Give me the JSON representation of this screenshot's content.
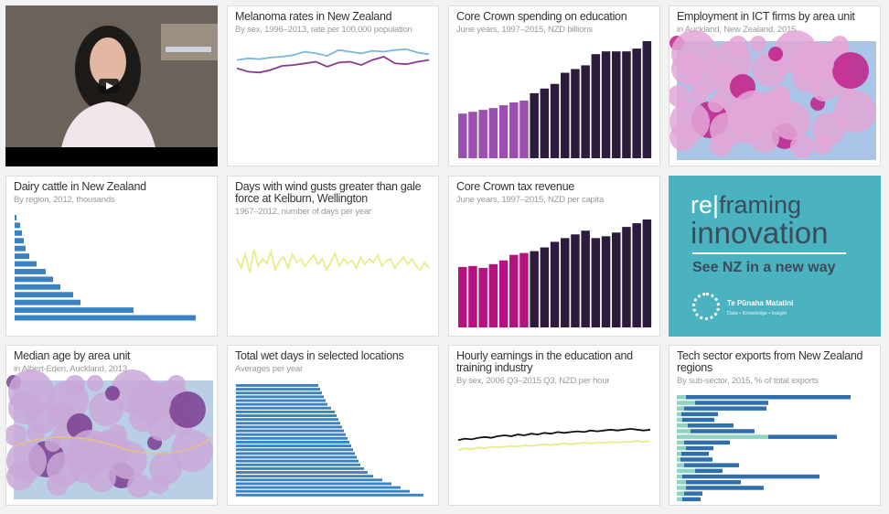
{
  "colors": {
    "promo": "#4bb3bf",
    "edu_early": "#9b4fb0",
    "edu_late": "#2d1b3d",
    "tax_early": "#b5127f",
    "blue": "#3b82c4",
    "teal": "#8fd3c1",
    "yellow": "#e8ec8a",
    "line_purple": "#8b3a8f",
    "line_blue": "#7ab6dd"
  },
  "cards": [
    {
      "id": "video",
      "icon": "play-icon"
    },
    {
      "title": "Melanoma rates in New Zealand",
      "subtitle": "By sex, 1996–2013, rate per 100,000 population",
      "series": [
        [
          40,
          42,
          41,
          43,
          44,
          46,
          50,
          48,
          45,
          52,
          50,
          48,
          51,
          50,
          52,
          53,
          49,
          47
        ],
        [
          30,
          26,
          25,
          28,
          33,
          34,
          36,
          38,
          32,
          37,
          38,
          34,
          40,
          44,
          36,
          35,
          38,
          40
        ]
      ]
    },
    {
      "title": "Core Crown spending on education",
      "subtitle": "June years, 1997–2015, NZD billions",
      "values": [
        48,
        50,
        52,
        54,
        57,
        60,
        62,
        70,
        75,
        80,
        92,
        96,
        100,
        112,
        115,
        115,
        115,
        118,
        126
      ]
    },
    {
      "title": "Employment in ICT firms by area unit",
      "subtitle": "in Auckland, New Zealand, 2015"
    },
    {
      "title": "Dairy cattle in New Zealand",
      "subtitle": "By region, 2012, thousands",
      "values": [
        2,
        6,
        8,
        10,
        12,
        16,
        24,
        34,
        42,
        50,
        64,
        72,
        130,
        198
      ]
    },
    {
      "title": "Days with wind gusts greater than gale force at Kelburn, Wellington",
      "subtitle": "1967–2012, number of days per year",
      "series": [
        [
          30,
          20,
          35,
          15,
          40,
          22,
          30,
          25,
          38,
          18,
          28,
          32,
          20,
          35,
          26,
          30,
          22,
          28,
          34,
          24,
          30,
          18,
          26,
          36,
          22,
          30,
          25,
          28,
          20,
          32,
          24,
          30,
          26,
          34,
          22,
          28,
          30,
          20,
          26,
          32,
          24,
          30,
          22,
          18,
          26,
          20
        ]
      ]
    },
    {
      "title": "Core Crown tax revenue",
      "subtitle": "June years, 1997–2015, NZD per capita",
      "values": [
        65,
        66,
        64,
        68,
        72,
        78,
        80,
        82,
        86,
        92,
        96,
        100,
        104,
        96,
        98,
        102,
        108,
        112,
        116
      ]
    },
    {
      "id": "promo",
      "re": "re",
      "framing": "framing",
      "innovation": "innovation",
      "tagline": "See NZ in a new way",
      "org": "Te Pūnaha Matatini",
      "org_tag": "Data • Knowledge • Insight"
    },
    {
      "title": "Median age by area unit",
      "subtitle": "in Albert-Eden, Auckland, 2013"
    },
    {
      "title": "Total wet days in selected locations",
      "subtitle": "Averages per year",
      "values": [
        90,
        92,
        94,
        96,
        98,
        100,
        104,
        108,
        110,
        112,
        114,
        116,
        118,
        120,
        122,
        124,
        126,
        128,
        130,
        132,
        134,
        136,
        140,
        144,
        150,
        160,
        170,
        180,
        190,
        205
      ]
    },
    {
      "title": "Hourly earnings in the education and training industry",
      "subtitle": "By sex, 2006 Q3–2015 Q3, NZD per hour",
      "series": [
        [
          30,
          32,
          31,
          33,
          34,
          33,
          35,
          36,
          35,
          37,
          36,
          38,
          37,
          39,
          38,
          40,
          39,
          40,
          41,
          40,
          42,
          41,
          42,
          43,
          42,
          43,
          44,
          43,
          42,
          43
        ],
        [
          18,
          20,
          19,
          21,
          20,
          22,
          21,
          22,
          23,
          22,
          24,
          23,
          24,
          25,
          24,
          25,
          26,
          25,
          26,
          27,
          26,
          27,
          27,
          28,
          27,
          28,
          28,
          29,
          28,
          29
        ]
      ]
    },
    {
      "title": "Tech sector exports from New Zealand regions",
      "subtitle": "By sub-sector, 2015, % of total exports",
      "stacked": [
        [
          10,
          180
        ],
        [
          20,
          80
        ],
        [
          8,
          90
        ],
        [
          5,
          40
        ],
        [
          6,
          35
        ],
        [
          12,
          50
        ],
        [
          15,
          70
        ],
        [
          100,
          75
        ],
        [
          8,
          50
        ],
        [
          10,
          30
        ],
        [
          5,
          30
        ],
        [
          4,
          35
        ],
        [
          8,
          60
        ],
        [
          20,
          30
        ],
        [
          6,
          150
        ],
        [
          10,
          60
        ],
        [
          10,
          85
        ],
        [
          8,
          20
        ],
        [
          6,
          20
        ]
      ]
    }
  ]
}
